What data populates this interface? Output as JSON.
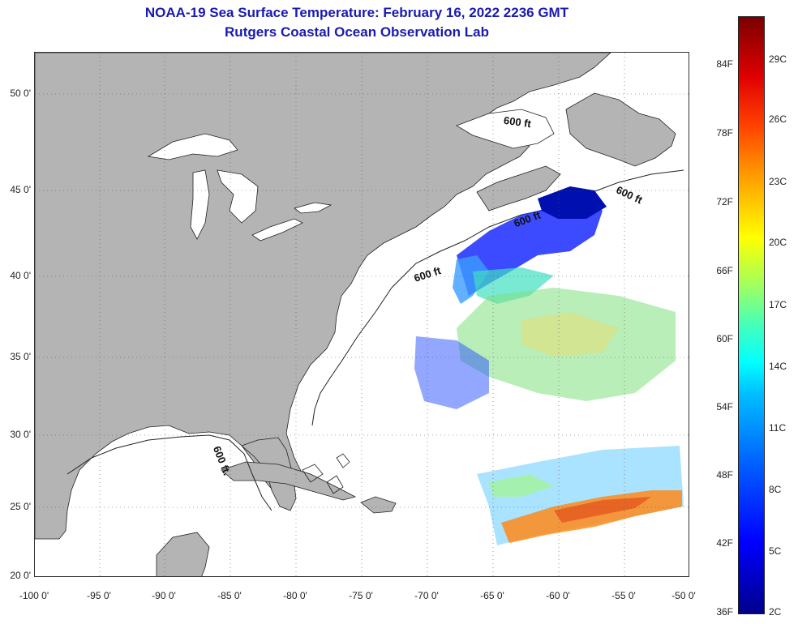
{
  "title": {
    "line1": "NOAA-19 Sea Surface Temperature:  February 16, 2022 2236 GMT",
    "line2": "Rutgers Coastal Ocean Observation Lab"
  },
  "map": {
    "lat_ticks": [
      "50 0'",
      "45 0'",
      "40 0'",
      "35 0'",
      "30 0'",
      "25 0'",
      "20 0'"
    ],
    "lon_ticks": [
      "-100 0'",
      "-95 0'",
      "-90 0'",
      "-85 0'",
      "-80 0'",
      "-75 0'",
      "-70 0'",
      "-65 0'",
      "-60 0'",
      "-55 0'",
      "-50 0'"
    ],
    "contour_label": "600 ft",
    "contour_label_gulf": "600 ft.",
    "land_color": "#b4b4b4",
    "water_color": "#ffffff"
  },
  "colorbar": {
    "fahrenheit": [
      "84F",
      "78F",
      "72F",
      "66F",
      "60F",
      "54F",
      "48F",
      "42F",
      "36F"
    ],
    "celsius": [
      "29C",
      "26C",
      "23C",
      "20C",
      "17C",
      "14C",
      "11C",
      "8C",
      "5C",
      "2C"
    ],
    "colors": [
      "#00008b",
      "#0000ff",
      "#00c0ff",
      "#00ffff",
      "#a0ff60",
      "#ffff00",
      "#ffa000",
      "#ff4000",
      "#7a0000"
    ]
  }
}
